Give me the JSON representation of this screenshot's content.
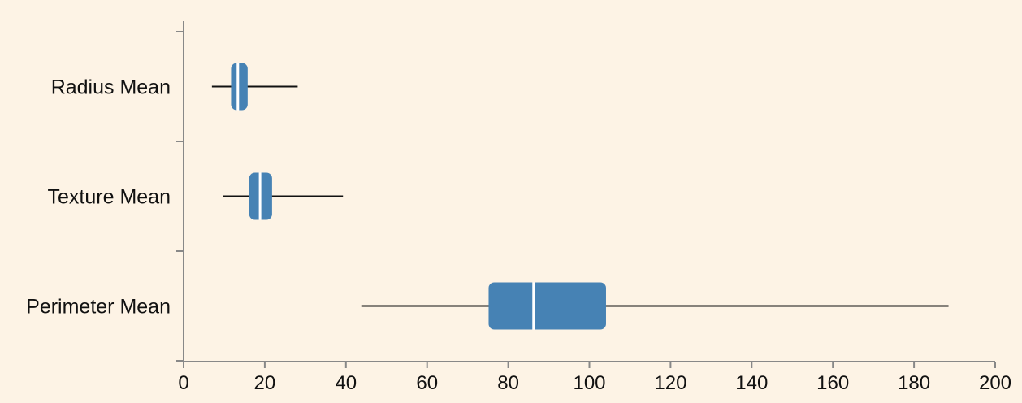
{
  "chart_data": {
    "type": "boxplot",
    "orientation": "horizontal",
    "xlim": [
      0,
      200
    ],
    "x_ticks": [
      "0",
      "20",
      "40",
      "60",
      "80",
      "100",
      "120",
      "140",
      "160",
      "180",
      "200"
    ],
    "grid": false,
    "box_color": "#4682b4",
    "median_color": "#ffffff",
    "background": "#fdf3e5",
    "series": [
      {
        "name": "Radius Mean",
        "min": 6.98,
        "q1": 11.7,
        "median": 13.37,
        "q3": 15.78,
        "max": 28.11
      },
      {
        "name": "Texture Mean",
        "min": 9.71,
        "q1": 16.17,
        "median": 18.84,
        "q3": 21.8,
        "max": 39.28
      },
      {
        "name": "Perimeter Mean",
        "min": 43.79,
        "q1": 75.17,
        "median": 86.24,
        "q3": 104.1,
        "max": 188.5
      }
    ]
  }
}
